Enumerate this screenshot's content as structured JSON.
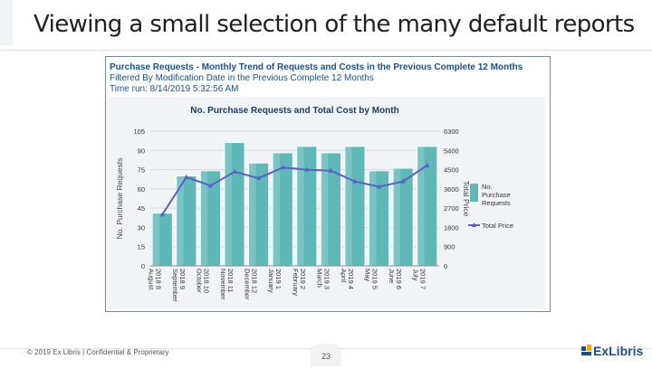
{
  "slide": {
    "title": "Viewing a small selection of the many default reports",
    "footer": "© 2019 Ex Libris | Confidential & Proprietary",
    "page_number": "23",
    "logo_text": "ExLibris",
    "accent_color": "#1b4f8a"
  },
  "report": {
    "title": "Purchase Requests - Monthly Trend of Requests and Costs in the Previous Complete 12 Months",
    "filter": "Filtered By Modification Date in the Previous Complete 12 Months",
    "timerun": "Time run: 8/14/2019 5:32:56 AM"
  },
  "chart_data": {
    "type": "bar",
    "title": "No. Purchase Requests and Total Cost by Month",
    "ylabel": "No. Purchase Requests",
    "y2label": "Total Price",
    "ylim": [
      0,
      105
    ],
    "yticks": [
      0,
      15,
      30,
      45,
      60,
      75,
      90,
      105
    ],
    "y2lim": [
      0,
      6300
    ],
    "y2ticks": [
      0,
      900,
      1800,
      2700,
      3600,
      4500,
      5400,
      6300
    ],
    "categories": [
      "2018 8 August",
      "2018 9 September",
      "2018 10 October",
      "2018 11 November",
      "2018 12 December",
      "2019 1 January",
      "2019 2 February",
      "2019 3 March",
      "2019 4 April",
      "2019 5 May",
      "2019 6 June",
      "2019 7 July"
    ],
    "series": [
      {
        "name": "No. Purchase Requests",
        "type": "bar",
        "axis": "left",
        "color": "#5fb8b8",
        "values": [
          41,
          70,
          74,
          96,
          80,
          88,
          93,
          88,
          93,
          74,
          76,
          93
        ]
      },
      {
        "name": "Total Price",
        "type": "line",
        "axis": "right",
        "color": "#5a5fc4",
        "values": [
          2400,
          4150,
          3750,
          4400,
          4100,
          4600,
          4500,
          4450,
          3950,
          3700,
          3950,
          4700
        ]
      }
    ],
    "grid": true,
    "legend": "right"
  }
}
